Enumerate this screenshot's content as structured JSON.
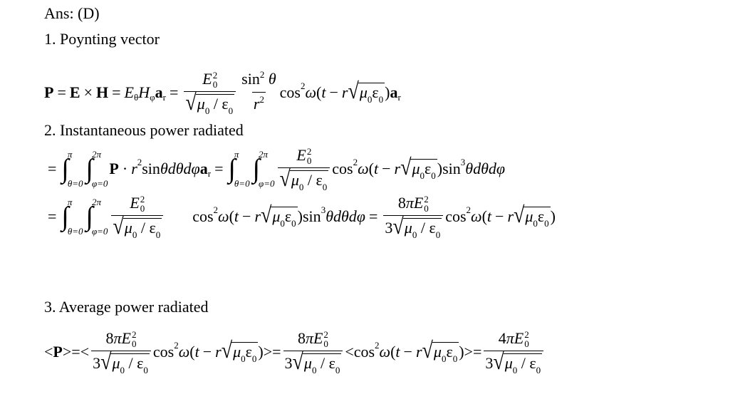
{
  "answer": "Ans: (D)",
  "sections": [
    {
      "heading": "1. Poynting vector"
    },
    {
      "heading": "2. Instantaneous power radiated"
    },
    {
      "heading": "3. Average power radiated"
    }
  ],
  "equations": {
    "poynting": [
      {
        "b": "P"
      },
      {
        "op": "="
      },
      {
        "b": "E"
      },
      {
        "op": "×"
      },
      {
        "b": "H"
      },
      {
        "op": "="
      },
      {
        "i": "E"
      },
      {
        "sub": "θ"
      },
      {
        "i": "H"
      },
      {
        "sub": "φ"
      },
      {
        "b": "a"
      },
      {
        "sub": "r"
      },
      {
        "op": "="
      },
      {
        "frac": [
          [
            {
              "i": "E"
            },
            {
              "ss": [
                "2",
                "0"
              ]
            }
          ],
          [
            {
              "sqrt": [
                {
                  "i": "μ"
                },
                {
                  "sub": "0"
                },
                " / ε",
                {
                  "sub": "0"
                }
              ]
            }
          ]
        ]
      },
      {
        "frac": [
          [
            "sin",
            {
              "sup": "2"
            },
            " ",
            {
              "i": "θ"
            }
          ],
          [
            {
              "i": "r"
            },
            {
              "sup": "2"
            }
          ]
        ]
      },
      "cos",
      {
        "sup": "2"
      },
      " ",
      {
        "i": "ω"
      },
      "(",
      {
        "i": "t"
      },
      {
        "op": "−"
      },
      {
        "i": "r"
      },
      {
        "sqrt": [
          {
            "i": "μ"
          },
          {
            "sub": "0"
          },
          "ε",
          {
            "sub": "0"
          }
        ]
      },
      ")",
      {
        "b": "a"
      },
      {
        "sub": "r"
      }
    ],
    "instantaneous_1": [
      {
        "op": "="
      },
      {
        "int": [
          "θ=0",
          "π"
        ]
      },
      {
        "int": [
          "φ=0",
          "2π"
        ]
      },
      {
        "b": "P"
      },
      {
        "op": "·"
      },
      {
        "i": "r"
      },
      {
        "sup": "2"
      },
      " sin ",
      {
        "i": "θdθdφ"
      },
      {
        "b": "a"
      },
      {
        "sub": "r"
      },
      {
        "op": "="
      },
      {
        "int": [
          "θ=0",
          "π"
        ]
      },
      {
        "int": [
          "φ=0",
          "2π"
        ]
      },
      {
        "frac": [
          [
            {
              "i": "E"
            },
            {
              "ss": [
                "2",
                "0"
              ]
            }
          ],
          [
            {
              "sqrt": [
                {
                  "i": "μ"
                },
                {
                  "sub": "0"
                },
                " / ε",
                {
                  "sub": "0"
                }
              ]
            }
          ]
        ]
      },
      "cos",
      {
        "sup": "2"
      },
      " ",
      {
        "i": "ω"
      },
      "(",
      {
        "i": "t"
      },
      {
        "op": "−"
      },
      {
        "i": "r"
      },
      {
        "sqrt": [
          {
            "i": "μ"
          },
          {
            "sub": "0"
          },
          "ε",
          {
            "sub": "0"
          }
        ]
      },
      ")",
      "sin",
      {
        "sup": "3"
      },
      " ",
      {
        "i": "θdθdφ"
      }
    ],
    "instantaneous_2": [
      {
        "op": "="
      },
      {
        "int": [
          "θ=0",
          "π"
        ]
      },
      {
        "int": [
          "φ=0",
          "2π"
        ]
      },
      {
        "frac": [
          [
            {
              "i": "E"
            },
            {
              "ss": [
                "2",
                "0"
              ]
            }
          ],
          [
            {
              "sqrt": [
                {
                  "i": "μ"
                },
                {
                  "sub": "0"
                },
                " / ε",
                {
                  "sub": "0"
                }
              ]
            }
          ]
        ]
      },
      {
        "sp": 1
      },
      "cos",
      {
        "sup": "2"
      },
      " ",
      {
        "i": "ω"
      },
      "(",
      {
        "i": "t"
      },
      {
        "op": "−"
      },
      {
        "i": "r"
      },
      {
        "sqrt": [
          {
            "i": "μ"
          },
          {
            "sub": "0"
          },
          "ε",
          {
            "sub": "0"
          }
        ]
      },
      ")",
      "sin",
      {
        "sup": "3"
      },
      " ",
      {
        "i": "θdθdφ"
      },
      {
        "op": "="
      },
      {
        "frac": [
          [
            "8",
            {
              "i": "πE"
            },
            {
              "ss": [
                "2",
                "0"
              ]
            }
          ],
          [
            "3",
            {
              "sqrt": [
                {
                  "i": "μ"
                },
                {
                  "sub": "0"
                },
                " / ε",
                {
                  "sub": "0"
                }
              ]
            }
          ]
        ]
      },
      "cos",
      {
        "sup": "2"
      },
      " ",
      {
        "i": "ω"
      },
      "(",
      {
        "i": "t"
      },
      {
        "op": "−"
      },
      {
        "i": "r"
      },
      {
        "sqrt": [
          {
            "i": "μ"
          },
          {
            "sub": "0"
          },
          "ε",
          {
            "sub": "0"
          }
        ]
      },
      ")"
    ],
    "average": [
      "< ",
      {
        "b": "P"
      },
      " >=< ",
      {
        "frac": [
          [
            "8",
            {
              "i": "πE"
            },
            {
              "ss": [
                "2",
                "0"
              ]
            }
          ],
          [
            "3",
            {
              "sqrt": [
                {
                  "i": "μ"
                },
                {
                  "sub": "0"
                },
                " / ε",
                {
                  "sub": "0"
                }
              ]
            }
          ]
        ]
      },
      "cos",
      {
        "sup": "2"
      },
      " ",
      {
        "i": "ω"
      },
      "(",
      {
        "i": "t"
      },
      {
        "op": "−"
      },
      {
        "i": "r"
      },
      {
        "sqrt": [
          {
            "i": "μ"
          },
          {
            "sub": "0"
          },
          "ε",
          {
            "sub": "0"
          }
        ]
      },
      ")",
      ">=",
      {
        "frac": [
          [
            "8",
            {
              "i": "πE"
            },
            {
              "ss": [
                "2",
                "0"
              ]
            }
          ],
          [
            "3",
            {
              "sqrt": [
                {
                  "i": "μ"
                },
                {
                  "sub": "0"
                },
                " / ε",
                {
                  "sub": "0"
                }
              ]
            }
          ]
        ]
      },
      "<cos",
      {
        "sup": "2"
      },
      " ",
      {
        "i": "ω"
      },
      "(",
      {
        "i": "t"
      },
      {
        "op": "−"
      },
      {
        "i": "r"
      },
      {
        "sqrt": [
          {
            "i": "μ"
          },
          {
            "sub": "0"
          },
          "ε",
          {
            "sub": "0"
          }
        ]
      },
      ")",
      ">=",
      {
        "frac": [
          [
            "4",
            {
              "i": "πE"
            },
            {
              "ss": [
                "2",
                "0"
              ]
            }
          ],
          [
            "3",
            {
              "sqrt": [
                {
                  "i": "μ"
                },
                {
                  "sub": "0"
                },
                " / ε",
                {
                  "sub": "0"
                }
              ]
            }
          ]
        ]
      }
    ]
  }
}
